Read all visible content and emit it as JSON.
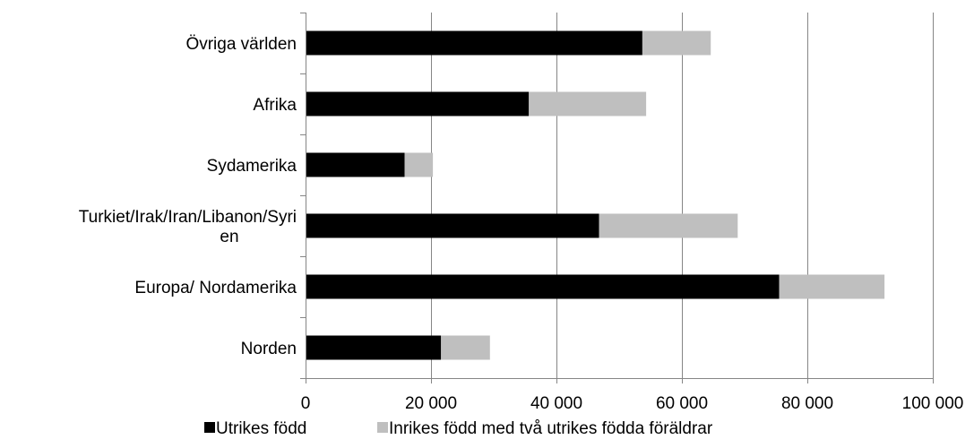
{
  "chart_data": {
    "type": "bar",
    "orientation": "horizontal",
    "stacked": true,
    "title": "",
    "xlabel": "",
    "ylabel": "",
    "categories": [
      [
        "Övriga världen"
      ],
      [
        "Afrika"
      ],
      [
        "Sydamerika"
      ],
      [
        "Turkiet/Irak/Iran/Libanon/Syri",
        "en"
      ],
      [
        "Europa/ Nordamerika"
      ],
      [
        "Norden"
      ]
    ],
    "series": [
      {
        "name": "Utrikes född",
        "color": "#000000",
        "values": [
          53700,
          35600,
          15800,
          46800,
          75500,
          21600
        ]
      },
      {
        "name": "Inrikes född med två utrikes födda föräldrar",
        "color": "#bfbfbf",
        "values": [
          10900,
          18700,
          4500,
          22100,
          16800,
          7800
        ]
      }
    ],
    "xlim": [
      0,
      100000
    ],
    "xticks": [
      0,
      20000,
      40000,
      60000,
      80000,
      100000
    ],
    "xtick_labels": [
      "0",
      "20 000",
      "40 000",
      "60 000",
      "80 000",
      "100 000"
    ],
    "grid": "vertical",
    "grid_color": "#868686",
    "legend_position": "bottom"
  }
}
